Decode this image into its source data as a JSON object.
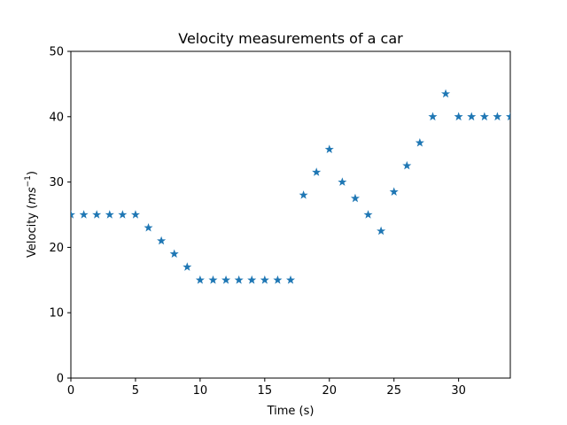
{
  "chart_data": {
    "type": "scatter",
    "title": "Velocity measurements of a car",
    "xlabel": "Time (s)",
    "ylabel": {
      "prefix": "Velocity (",
      "unit_base": "ms",
      "unit_exponent": "−1",
      "suffix": ")"
    },
    "xlim": [
      0,
      34
    ],
    "ylim": [
      0,
      50
    ],
    "xticks": [
      "0",
      "5",
      "10",
      "15",
      "20",
      "25",
      "30"
    ],
    "yticks": [
      "0",
      "10",
      "20",
      "30",
      "40",
      "50"
    ],
    "grid": false,
    "legend": "none",
    "marker": "star",
    "color": "#1f77b4",
    "x": [
      0,
      1,
      2,
      3,
      4,
      5,
      6,
      7,
      8,
      9,
      10,
      11,
      12,
      13,
      14,
      15,
      16,
      17,
      18,
      19,
      20,
      21,
      22,
      23,
      24,
      25,
      26,
      27,
      28,
      29,
      30,
      31,
      32,
      33,
      34
    ],
    "y": [
      25,
      25,
      25,
      25,
      25,
      25,
      23,
      21,
      19,
      17,
      15,
      15,
      15,
      15,
      15,
      15,
      15,
      15,
      28,
      31.5,
      35,
      30,
      27.5,
      25,
      22.5,
      28.5,
      32.5,
      36,
      40,
      43.5,
      40,
      40,
      40,
      40,
      40
    ]
  }
}
